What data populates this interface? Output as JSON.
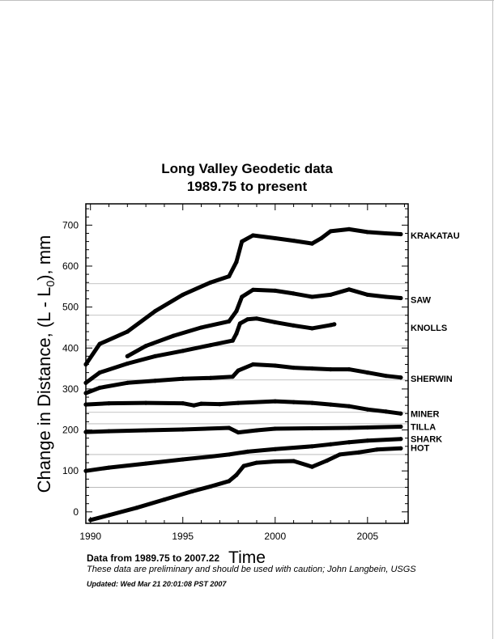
{
  "chart_data": {
    "type": "scatter",
    "title": "Long Valley Geodetic data",
    "subtitle": "1989.75 to present",
    "xlabel": "Time",
    "ylabel_main": "Change in Distance, (L - L",
    "ylabel_sub": "0",
    "ylabel_tail": "), mm",
    "xlim": [
      1989.75,
      2007.2
    ],
    "ylim": [
      -28,
      752
    ],
    "xticks": [
      1990,
      1995,
      2000,
      2005
    ],
    "yticks": [
      0,
      100,
      200,
      300,
      400,
      500,
      600,
      700
    ],
    "xtick_labels": [
      "1990",
      "1995",
      "2000",
      "2005"
    ],
    "ytick_labels": [
      "0",
      "100",
      "200",
      "300",
      "400",
      "500",
      "600",
      "700"
    ],
    "gridlines_y": [
      60,
      140,
      215,
      243,
      322,
      405,
      480,
      557
    ],
    "series": [
      {
        "name": "KRAKATAU",
        "label_y": 675,
        "points": [
          [
            1989.75,
            360
          ],
          [
            1990.5,
            410
          ],
          [
            1992,
            440
          ],
          [
            1993.5,
            490
          ],
          [
            1995,
            530
          ],
          [
            1996.5,
            560
          ],
          [
            1997.5,
            575
          ],
          [
            1997.9,
            610
          ],
          [
            1998.2,
            660
          ],
          [
            1998.8,
            675
          ],
          [
            2000,
            668
          ],
          [
            2001,
            662
          ],
          [
            2002,
            655
          ],
          [
            2002.5,
            668
          ],
          [
            2003,
            685
          ],
          [
            2004,
            690
          ],
          [
            2005,
            683
          ],
          [
            2006,
            680
          ],
          [
            2006.8,
            678
          ]
        ]
      },
      {
        "name": "SAW",
        "label_y": 518,
        "points": [
          [
            1992,
            380
          ],
          [
            1993,
            405
          ],
          [
            1994.5,
            430
          ],
          [
            1996,
            450
          ],
          [
            1997.5,
            465
          ],
          [
            1997.9,
            490
          ],
          [
            1998.2,
            525
          ],
          [
            1998.8,
            542
          ],
          [
            2000,
            540
          ],
          [
            2001,
            533
          ],
          [
            2002,
            525
          ],
          [
            2003,
            530
          ],
          [
            2004,
            543
          ],
          [
            2005,
            530
          ],
          [
            2006,
            525
          ],
          [
            2006.8,
            522
          ]
        ]
      },
      {
        "name": "KNOLLS",
        "label_y": 450,
        "points": [
          [
            1989.75,
            315
          ],
          [
            1990.5,
            340
          ],
          [
            1992,
            362
          ],
          [
            1993.5,
            380
          ],
          [
            1995,
            393
          ],
          [
            1996.5,
            407
          ],
          [
            1997.7,
            418
          ],
          [
            1997.9,
            435
          ],
          [
            1998.1,
            460
          ],
          [
            1998.5,
            470
          ],
          [
            1999,
            472
          ],
          [
            2000,
            463
          ],
          [
            2001,
            455
          ],
          [
            2002,
            448
          ],
          [
            2003,
            456
          ],
          [
            2003.2,
            458
          ]
        ]
      },
      {
        "name": "SHERWIN",
        "label_y": 325,
        "points": [
          [
            1989.75,
            290
          ],
          [
            1990.5,
            303
          ],
          [
            1992,
            315
          ],
          [
            1993.5,
            320
          ],
          [
            1995,
            325
          ],
          [
            1996.5,
            327
          ],
          [
            1997.7,
            330
          ],
          [
            1998,
            345
          ],
          [
            1998.8,
            360
          ],
          [
            2000,
            357
          ],
          [
            2001,
            352
          ],
          [
            2002,
            350
          ],
          [
            2003,
            348
          ],
          [
            2004,
            348
          ],
          [
            2005,
            340
          ],
          [
            2006,
            332
          ],
          [
            2006.8,
            328
          ]
        ]
      },
      {
        "name": "MINER",
        "label_y": 240,
        "points": [
          [
            1989.75,
            262
          ],
          [
            1991,
            265
          ],
          [
            1993,
            266
          ],
          [
            1995,
            265
          ],
          [
            1995.6,
            260
          ],
          [
            1996,
            264
          ],
          [
            1997,
            263
          ],
          [
            1998,
            266
          ],
          [
            2000,
            270
          ],
          [
            2001,
            268
          ],
          [
            2002,
            266
          ],
          [
            2003,
            262
          ],
          [
            2004,
            258
          ],
          [
            2005,
            250
          ],
          [
            2006,
            245
          ],
          [
            2006.8,
            240
          ]
        ]
      },
      {
        "name": "TILLA",
        "label_y": 208,
        "points": [
          [
            1989.75,
            195
          ],
          [
            1991,
            197
          ],
          [
            1993,
            199
          ],
          [
            1995,
            201
          ],
          [
            1997.5,
            205
          ],
          [
            1998,
            194
          ],
          [
            1999,
            199
          ],
          [
            2000,
            203
          ],
          [
            2002,
            204
          ],
          [
            2004,
            205
          ],
          [
            2005,
            206
          ],
          [
            2006.8,
            208
          ]
        ]
      },
      {
        "name": "SHARK",
        "label_y": 178,
        "points": [
          [
            1989.75,
            100
          ],
          [
            1991,
            108
          ],
          [
            1993,
            118
          ],
          [
            1995,
            128
          ],
          [
            1996.5,
            135
          ],
          [
            1997.5,
            140
          ],
          [
            1998.5,
            147
          ],
          [
            2000,
            153
          ],
          [
            2002,
            160
          ],
          [
            2003,
            165
          ],
          [
            2004,
            170
          ],
          [
            2005,
            174
          ],
          [
            2006.8,
            178
          ]
        ]
      },
      {
        "name": "HOT",
        "label_y": 157,
        "points": [
          [
            1990,
            -20
          ],
          [
            1991,
            -8
          ],
          [
            1992.5,
            10
          ],
          [
            1994,
            30
          ],
          [
            1995.5,
            50
          ],
          [
            1996.5,
            62
          ],
          [
            1997.5,
            75
          ],
          [
            1997.9,
            90
          ],
          [
            1998.3,
            112
          ],
          [
            1999,
            120
          ],
          [
            2000,
            123
          ],
          [
            2001,
            124
          ],
          [
            2002,
            110
          ],
          [
            2002.8,
            125
          ],
          [
            2003.5,
            140
          ],
          [
            2004.5,
            145
          ],
          [
            2005.5,
            152
          ],
          [
            2006.8,
            155
          ]
        ]
      }
    ]
  },
  "footer": {
    "data_range": "Data from 1989.75 to 2007.22",
    "caution": "These data are preliminary and should be used with caution;  John Langbein, USGS",
    "updated": "Updated: Wed Mar 21 20:01:08 PST 2007"
  }
}
